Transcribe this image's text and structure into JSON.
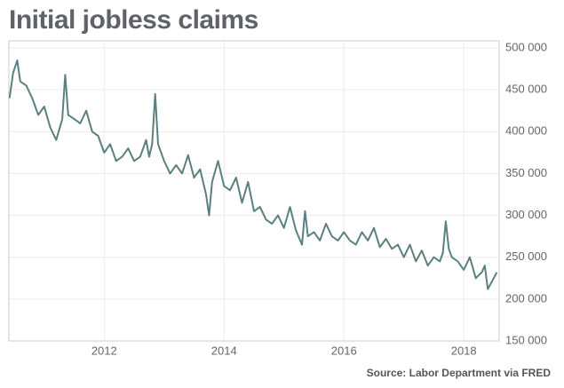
{
  "chart_data": {
    "type": "line",
    "title": "Initial jobless claims",
    "source": "Source: Labor Department via FRED",
    "x": [
      2010.42,
      2010.48,
      2010.55,
      2010.6,
      2010.7,
      2010.8,
      2010.9,
      2011.0,
      2011.1,
      2011.2,
      2011.3,
      2011.35,
      2011.4,
      2011.5,
      2011.6,
      2011.7,
      2011.8,
      2011.9,
      2012.0,
      2012.1,
      2012.2,
      2012.3,
      2012.4,
      2012.5,
      2012.6,
      2012.7,
      2012.75,
      2012.8,
      2012.85,
      2012.9,
      2013.0,
      2013.1,
      2013.2,
      2013.3,
      2013.4,
      2013.5,
      2013.6,
      2013.7,
      2013.75,
      2013.8,
      2013.9,
      2014.0,
      2014.1,
      2014.2,
      2014.3,
      2014.4,
      2014.5,
      2014.6,
      2014.7,
      2014.8,
      2014.9,
      2015.0,
      2015.1,
      2015.2,
      2015.3,
      2015.35,
      2015.4,
      2015.5,
      2015.6,
      2015.7,
      2015.8,
      2015.9,
      2016.0,
      2016.1,
      2016.2,
      2016.3,
      2016.4,
      2016.5,
      2016.6,
      2016.7,
      2016.8,
      2016.9,
      2017.0,
      2017.1,
      2017.2,
      2017.3,
      2017.4,
      2017.5,
      2017.6,
      2017.65,
      2017.7,
      2017.75,
      2017.8,
      2017.9,
      2018.0,
      2018.1,
      2018.2,
      2018.3,
      2018.35,
      2018.4,
      2018.5,
      2018.55
    ],
    "series": [
      {
        "name": "Initial claims",
        "color": "#5b8080",
        "values": [
          440000,
          470000,
          485000,
          460000,
          455000,
          440000,
          420000,
          430000,
          405000,
          390000,
          415000,
          468000,
          420000,
          415000,
          410000,
          425000,
          400000,
          395000,
          375000,
          385000,
          365000,
          370000,
          380000,
          365000,
          370000,
          390000,
          370000,
          385000,
          445000,
          385000,
          365000,
          350000,
          360000,
          350000,
          372000,
          345000,
          355000,
          325000,
          300000,
          340000,
          365000,
          335000,
          330000,
          345000,
          315000,
          340000,
          305000,
          310000,
          295000,
          290000,
          300000,
          285000,
          310000,
          282000,
          265000,
          305000,
          275000,
          280000,
          270000,
          290000,
          275000,
          270000,
          280000,
          270000,
          265000,
          280000,
          270000,
          285000,
          262000,
          272000,
          260000,
          265000,
          250000,
          265000,
          245000,
          258000,
          240000,
          250000,
          245000,
          255000,
          293000,
          260000,
          250000,
          245000,
          235000,
          250000,
          225000,
          232000,
          240000,
          212000,
          225000,
          232000
        ]
      }
    ],
    "xlim": [
      2010.41,
      2018.59
    ],
    "xticks": [
      2012,
      2014,
      2016,
      2018
    ],
    "ylim": [
      150000,
      500000
    ],
    "yticks": [
      {
        "value": 150000,
        "label": "150 000"
      },
      {
        "value": 200000,
        "label": "200 000"
      },
      {
        "value": 250000,
        "label": "250 000"
      },
      {
        "value": 300000,
        "label": "300 000"
      },
      {
        "value": 350000,
        "label": "350 000"
      },
      {
        "value": 400000,
        "label": "400 000"
      },
      {
        "value": 450000,
        "label": "450 000"
      },
      {
        "value": 500000,
        "label": "500 000"
      }
    ],
    "grid": true
  }
}
